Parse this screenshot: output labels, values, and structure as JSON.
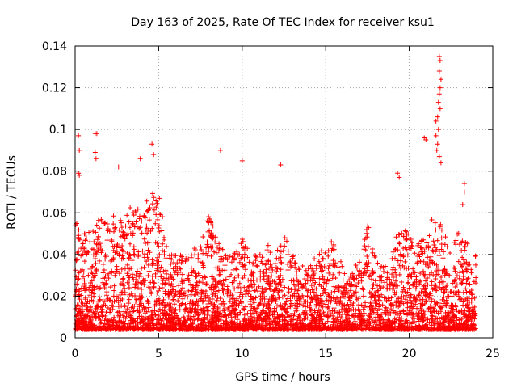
{
  "chart_data": {
    "type": "scatter",
    "title": "Day 163 of 2025, Rate Of TEC Index for receiver ksu1",
    "xlabel": "GPS time / hours",
    "ylabel": "ROTI / TECUs",
    "xlim": [
      0,
      25
    ],
    "ylim": [
      0,
      0.14
    ],
    "x_ticks": [
      0,
      5,
      10,
      15,
      20,
      25
    ],
    "x_tick_labels": [
      "0",
      "5",
      "10",
      "15",
      "20",
      "25"
    ],
    "y_ticks": [
      0,
      0.02,
      0.04,
      0.06,
      0.08,
      0.1,
      0.12,
      0.14
    ],
    "y_tick_labels": [
      "0",
      "0.02",
      "0.04",
      "0.06",
      "0.08",
      "0.1",
      "0.12",
      "0.14"
    ],
    "grid": true,
    "marker": "+",
    "marker_color": "#ff0000",
    "series": [
      {
        "name": "ROTI",
        "envelope_note": "Dense scatter over 0-24 h; bulk between 0.005 and 0.03 TECUs",
        "envelope_hours": [
          0,
          0.5,
          1,
          1.5,
          2,
          2.5,
          3,
          3.5,
          4,
          4.5,
          5,
          5.5,
          6,
          6.5,
          7,
          7.5,
          8,
          8.5,
          9,
          9.5,
          10,
          10.5,
          11,
          11.5,
          12,
          12.5,
          13,
          13.5,
          14,
          14.5,
          15,
          15.5,
          16,
          16.5,
          17,
          17.5,
          18,
          18.5,
          19,
          19.5,
          20,
          20.5,
          21,
          21.5,
          22,
          22.5,
          23,
          23.5,
          24
        ],
        "envelope_upper": [
          0.058,
          0.052,
          0.05,
          0.06,
          0.058,
          0.062,
          0.06,
          0.065,
          0.06,
          0.07,
          0.072,
          0.045,
          0.04,
          0.04,
          0.04,
          0.05,
          0.06,
          0.048,
          0.045,
          0.04,
          0.05,
          0.042,
          0.04,
          0.045,
          0.04,
          0.05,
          0.04,
          0.035,
          0.035,
          0.04,
          0.045,
          0.05,
          0.035,
          0.03,
          0.04,
          0.055,
          0.04,
          0.035,
          0.045,
          0.055,
          0.05,
          0.045,
          0.05,
          0.06,
          0.055,
          0.04,
          0.055,
          0.045,
          0.04
        ],
        "outliers": [
          {
            "x": 0.2,
            "y": 0.097
          },
          {
            "x": 0.25,
            "y": 0.09
          },
          {
            "x": 0.2,
            "y": 0.079
          },
          {
            "x": 0.25,
            "y": 0.078
          },
          {
            "x": 1.2,
            "y": 0.098
          },
          {
            "x": 1.3,
            "y": 0.098
          },
          {
            "x": 1.2,
            "y": 0.089
          },
          {
            "x": 1.25,
            "y": 0.086
          },
          {
            "x": 4.6,
            "y": 0.093
          },
          {
            "x": 4.7,
            "y": 0.088
          },
          {
            "x": 3.9,
            "y": 0.086
          },
          {
            "x": 2.6,
            "y": 0.082
          },
          {
            "x": 8.7,
            "y": 0.09
          },
          {
            "x": 10.0,
            "y": 0.085
          },
          {
            "x": 12.3,
            "y": 0.083
          },
          {
            "x": 19.3,
            "y": 0.079
          },
          {
            "x": 19.4,
            "y": 0.077
          },
          {
            "x": 20.9,
            "y": 0.096
          },
          {
            "x": 21.0,
            "y": 0.095
          },
          {
            "x": 21.6,
            "y": 0.104
          },
          {
            "x": 21.8,
            "y": 0.135
          },
          {
            "x": 21.85,
            "y": 0.133
          },
          {
            "x": 21.8,
            "y": 0.128
          },
          {
            "x": 21.9,
            "y": 0.124
          },
          {
            "x": 21.85,
            "y": 0.12
          },
          {
            "x": 21.8,
            "y": 0.117
          },
          {
            "x": 21.75,
            "y": 0.113
          },
          {
            "x": 21.85,
            "y": 0.11
          },
          {
            "x": 21.7,
            "y": 0.106
          },
          {
            "x": 21.75,
            "y": 0.1
          },
          {
            "x": 21.6,
            "y": 0.097
          },
          {
            "x": 21.7,
            "y": 0.093
          },
          {
            "x": 21.65,
            "y": 0.09
          },
          {
            "x": 21.8,
            "y": 0.087
          },
          {
            "x": 21.9,
            "y": 0.084
          },
          {
            "x": 23.3,
            "y": 0.074
          },
          {
            "x": 23.3,
            "y": 0.07
          },
          {
            "x": 23.2,
            "y": 0.064
          }
        ]
      }
    ]
  }
}
